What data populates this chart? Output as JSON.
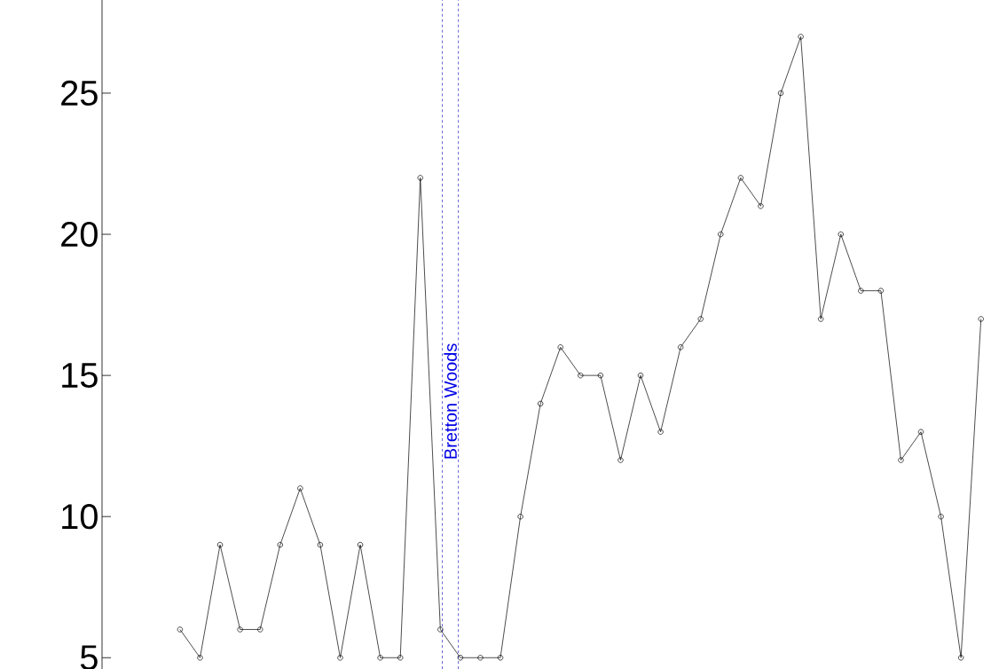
{
  "chart_data": {
    "type": "line",
    "categories": [
      null,
      null,
      null,
      null,
      null,
      null,
      null,
      null,
      null,
      null,
      null,
      null,
      null,
      null,
      null,
      null,
      null,
      null,
      null,
      null,
      null,
      null,
      null,
      null,
      null,
      null,
      null,
      null,
      null,
      null,
      null,
      null,
      null,
      null,
      null,
      null,
      null,
      null,
      null,
      null,
      null
    ],
    "values": [
      6,
      5,
      9,
      6,
      6,
      9,
      11,
      9,
      5,
      9,
      5,
      5,
      22,
      6,
      5,
      5,
      5,
      10,
      14,
      16,
      15,
      15,
      12,
      15,
      13,
      16,
      17,
      20,
      22,
      21,
      25,
      27,
      17,
      20,
      18,
      18,
      12,
      13,
      10,
      5,
      17
    ],
    "color": "#000000",
    "marker": "circle",
    "ylim": [
      4.6,
      28.3
    ],
    "yticks": [
      5,
      10,
      15,
      20,
      25
    ],
    "tick_labels": "y",
    "annotations": [
      "Bretton Woods"
    ]
  }
}
